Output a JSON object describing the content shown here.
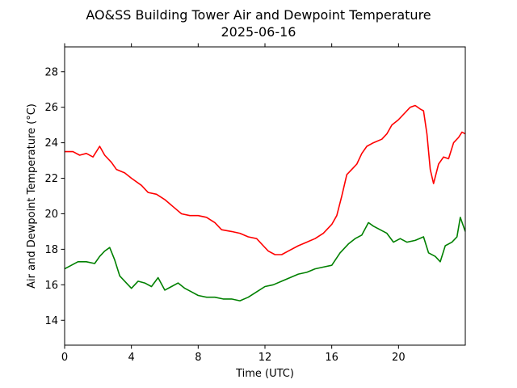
{
  "chart_data": {
    "type": "line",
    "title": "AO&SS Building Tower Air and Dewpoint Temperature",
    "subtitle": "2025-06-16",
    "xlabel": "Time (UTC)",
    "ylabel": "Air and Dewpoint Temperature (°C)",
    "xlim": [
      0,
      24
    ],
    "ylim": [
      12.6,
      29.4
    ],
    "xticks": [
      0,
      4,
      8,
      12,
      16,
      20
    ],
    "yticks": [
      14,
      16,
      18,
      20,
      22,
      24,
      26,
      28
    ],
    "grid": false,
    "legend": "none",
    "series": [
      {
        "color": "#ff0000",
        "points": [
          [
            0.0,
            23.5
          ],
          [
            0.5,
            23.5
          ],
          [
            0.9,
            23.3
          ],
          [
            1.3,
            23.4
          ],
          [
            1.7,
            23.2
          ],
          [
            2.1,
            23.8
          ],
          [
            2.4,
            23.3
          ],
          [
            2.8,
            22.9
          ],
          [
            3.1,
            22.5
          ],
          [
            3.6,
            22.3
          ],
          [
            4.0,
            22.0
          ],
          [
            4.6,
            21.6
          ],
          [
            5.0,
            21.2
          ],
          [
            5.5,
            21.1
          ],
          [
            6.0,
            20.8
          ],
          [
            6.5,
            20.4
          ],
          [
            7.0,
            20.0
          ],
          [
            7.5,
            19.9
          ],
          [
            8.0,
            19.9
          ],
          [
            8.5,
            19.8
          ],
          [
            9.0,
            19.5
          ],
          [
            9.4,
            19.1
          ],
          [
            10.0,
            19.0
          ],
          [
            10.5,
            18.9
          ],
          [
            11.0,
            18.7
          ],
          [
            11.5,
            18.6
          ],
          [
            11.9,
            18.2
          ],
          [
            12.2,
            17.9
          ],
          [
            12.6,
            17.7
          ],
          [
            13.0,
            17.7
          ],
          [
            13.4,
            17.9
          ],
          [
            14.0,
            18.2
          ],
          [
            14.5,
            18.4
          ],
          [
            15.0,
            18.6
          ],
          [
            15.5,
            18.9
          ],
          [
            16.0,
            19.4
          ],
          [
            16.3,
            19.9
          ],
          [
            16.6,
            21.0
          ],
          [
            16.9,
            22.2
          ],
          [
            17.2,
            22.5
          ],
          [
            17.5,
            22.8
          ],
          [
            17.8,
            23.4
          ],
          [
            18.1,
            23.8
          ],
          [
            18.5,
            24.0
          ],
          [
            19.0,
            24.2
          ],
          [
            19.3,
            24.5
          ],
          [
            19.6,
            25.0
          ],
          [
            20.0,
            25.3
          ],
          [
            20.3,
            25.6
          ],
          [
            20.7,
            26.0
          ],
          [
            21.0,
            26.1
          ],
          [
            21.3,
            25.9
          ],
          [
            21.5,
            25.8
          ],
          [
            21.7,
            24.5
          ],
          [
            21.9,
            22.5
          ],
          [
            22.1,
            21.7
          ],
          [
            22.4,
            22.8
          ],
          [
            22.7,
            23.2
          ],
          [
            23.0,
            23.1
          ],
          [
            23.3,
            24.0
          ],
          [
            23.6,
            24.3
          ],
          [
            23.8,
            24.6
          ],
          [
            24.0,
            24.5
          ]
        ]
      },
      {
        "color": "#008000",
        "points": [
          [
            0.0,
            16.9
          ],
          [
            0.4,
            17.1
          ],
          [
            0.8,
            17.3
          ],
          [
            1.3,
            17.3
          ],
          [
            1.8,
            17.2
          ],
          [
            2.1,
            17.6
          ],
          [
            2.4,
            17.9
          ],
          [
            2.7,
            18.1
          ],
          [
            3.0,
            17.4
          ],
          [
            3.3,
            16.5
          ],
          [
            3.6,
            16.2
          ],
          [
            4.0,
            15.8
          ],
          [
            4.4,
            16.2
          ],
          [
            4.8,
            16.1
          ],
          [
            5.2,
            15.9
          ],
          [
            5.6,
            16.4
          ],
          [
            6.0,
            15.7
          ],
          [
            6.4,
            15.9
          ],
          [
            6.8,
            16.1
          ],
          [
            7.2,
            15.8
          ],
          [
            7.6,
            15.6
          ],
          [
            8.0,
            15.4
          ],
          [
            8.5,
            15.3
          ],
          [
            9.0,
            15.3
          ],
          [
            9.5,
            15.2
          ],
          [
            10.0,
            15.2
          ],
          [
            10.5,
            15.1
          ],
          [
            11.0,
            15.3
          ],
          [
            11.5,
            15.6
          ],
          [
            12.0,
            15.9
          ],
          [
            12.5,
            16.0
          ],
          [
            13.0,
            16.2
          ],
          [
            13.5,
            16.4
          ],
          [
            14.0,
            16.6
          ],
          [
            14.5,
            16.7
          ],
          [
            15.0,
            16.9
          ],
          [
            15.5,
            17.0
          ],
          [
            16.0,
            17.1
          ],
          [
            16.5,
            17.8
          ],
          [
            17.0,
            18.3
          ],
          [
            17.4,
            18.6
          ],
          [
            17.8,
            18.8
          ],
          [
            18.2,
            19.5
          ],
          [
            18.5,
            19.3
          ],
          [
            18.9,
            19.1
          ],
          [
            19.3,
            18.9
          ],
          [
            19.7,
            18.4
          ],
          [
            20.1,
            18.6
          ],
          [
            20.5,
            18.4
          ],
          [
            21.0,
            18.5
          ],
          [
            21.5,
            18.7
          ],
          [
            21.8,
            17.8
          ],
          [
            22.2,
            17.6
          ],
          [
            22.5,
            17.3
          ],
          [
            22.8,
            18.2
          ],
          [
            23.2,
            18.4
          ],
          [
            23.5,
            18.7
          ],
          [
            23.7,
            19.8
          ],
          [
            24.0,
            19.0
          ]
        ]
      }
    ]
  }
}
